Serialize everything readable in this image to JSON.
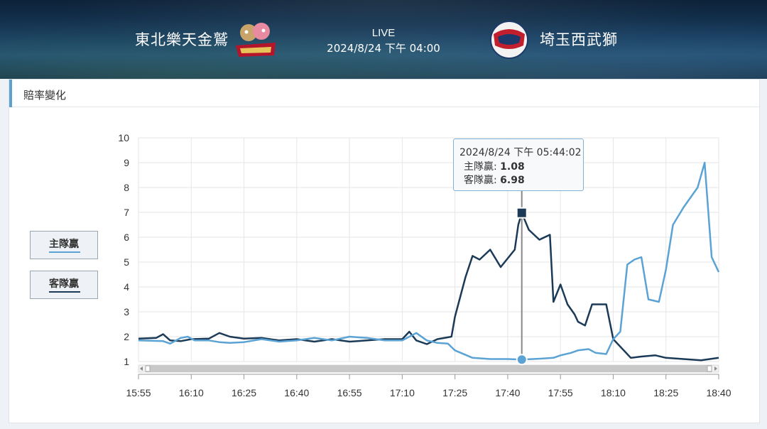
{
  "header": {
    "home_team": "東北樂天金鷲",
    "away_team": "埼玉西武獅",
    "status": "LIVE",
    "datetime": "2024/8/24 下午 04:00"
  },
  "section": {
    "title": "賠率變化"
  },
  "legend": {
    "home": "主隊贏",
    "away": "客隊贏"
  },
  "tooltip": {
    "time": "2024/8/24 下午 05:44:02",
    "home_label": "主隊贏:",
    "home_value": "1.08",
    "away_label": "客隊贏:",
    "away_value": "6.98"
  },
  "colors": {
    "home": "#5ba3d4",
    "away": "#1b3a57",
    "grid": "#e6e6e6",
    "header_bg": "#163a5c"
  },
  "chart_data": {
    "type": "line",
    "x_ticks": [
      "15:55",
      "16:10",
      "16:25",
      "16:40",
      "16:55",
      "17:10",
      "17:25",
      "17:40",
      "17:55",
      "18:10",
      "18:25",
      "18:40"
    ],
    "ylim": [
      1,
      10
    ],
    "y_ticks": [
      1,
      2,
      3,
      4,
      5,
      6,
      7,
      8,
      9,
      10
    ],
    "grid": true,
    "series": [
      {
        "name": "主隊贏",
        "color": "#5ba3d4",
        "points": [
          [
            "15:55",
            1.85
          ],
          [
            "16:02",
            1.82
          ],
          [
            "16:04",
            1.72
          ],
          [
            "16:07",
            1.95
          ],
          [
            "16:09",
            2.0
          ],
          [
            "16:11",
            1.85
          ],
          [
            "16:15",
            1.85
          ],
          [
            "16:18",
            1.78
          ],
          [
            "16:21",
            1.75
          ],
          [
            "16:25",
            1.78
          ],
          [
            "16:30",
            1.9
          ],
          [
            "16:35",
            1.8
          ],
          [
            "16:40",
            1.85
          ],
          [
            "16:45",
            1.95
          ],
          [
            "16:50",
            1.85
          ],
          [
            "16:55",
            2.0
          ],
          [
            "17:00",
            1.95
          ],
          [
            "17:05",
            1.85
          ],
          [
            "17:10",
            1.85
          ],
          [
            "17:14",
            2.15
          ],
          [
            "17:17",
            1.85
          ],
          [
            "17:20",
            1.75
          ],
          [
            "17:23",
            1.72
          ],
          [
            "17:25",
            1.45
          ],
          [
            "17:30",
            1.15
          ],
          [
            "17:35",
            1.1
          ],
          [
            "17:40",
            1.1
          ],
          [
            "17:44",
            1.08
          ],
          [
            "17:50",
            1.12
          ],
          [
            "17:53",
            1.15
          ],
          [
            "17:55",
            1.25
          ],
          [
            "17:58",
            1.35
          ],
          [
            "18:00",
            1.45
          ],
          [
            "18:03",
            1.5
          ],
          [
            "18:05",
            1.35
          ],
          [
            "18:08",
            1.3
          ],
          [
            "18:10",
            1.9
          ],
          [
            "18:12",
            2.2
          ],
          [
            "18:14",
            4.9
          ],
          [
            "18:16",
            5.1
          ],
          [
            "18:18",
            5.2
          ],
          [
            "18:20",
            3.5
          ],
          [
            "18:23",
            3.4
          ],
          [
            "18:25",
            4.7
          ],
          [
            "18:27",
            6.5
          ],
          [
            "18:30",
            7.2
          ],
          [
            "18:34",
            8.0
          ],
          [
            "18:36",
            9.0
          ],
          [
            "18:38",
            5.2
          ],
          [
            "18:40",
            4.6
          ]
        ]
      },
      {
        "name": "客隊贏",
        "color": "#1b3a57",
        "points": [
          [
            "15:55",
            1.92
          ],
          [
            "16:00",
            1.95
          ],
          [
            "16:02",
            2.1
          ],
          [
            "16:04",
            1.85
          ],
          [
            "16:07",
            1.82
          ],
          [
            "16:10",
            1.9
          ],
          [
            "16:15",
            1.92
          ],
          [
            "16:18",
            2.15
          ],
          [
            "16:21",
            2.0
          ],
          [
            "16:25",
            1.92
          ],
          [
            "16:30",
            1.95
          ],
          [
            "16:35",
            1.85
          ],
          [
            "16:40",
            1.9
          ],
          [
            "16:45",
            1.8
          ],
          [
            "16:50",
            1.9
          ],
          [
            "16:55",
            1.8
          ],
          [
            "17:00",
            1.85
          ],
          [
            "17:05",
            1.9
          ],
          [
            "17:10",
            1.9
          ],
          [
            "17:12",
            2.2
          ],
          [
            "17:14",
            1.85
          ],
          [
            "17:17",
            1.7
          ],
          [
            "17:20",
            1.9
          ],
          [
            "17:24",
            2.0
          ],
          [
            "17:25",
            2.8
          ],
          [
            "17:28",
            4.4
          ],
          [
            "17:30",
            5.25
          ],
          [
            "17:32",
            5.1
          ],
          [
            "17:35",
            5.5
          ],
          [
            "17:38",
            4.8
          ],
          [
            "17:42",
            5.5
          ],
          [
            "17:43",
            6.5
          ],
          [
            "17:44",
            6.98
          ],
          [
            "17:46",
            6.3
          ],
          [
            "17:49",
            5.9
          ],
          [
            "17:52",
            6.1
          ],
          [
            "17:53",
            3.4
          ],
          [
            "17:55",
            4.1
          ],
          [
            "17:57",
            3.3
          ],
          [
            "17:59",
            2.9
          ],
          [
            "18:00",
            2.6
          ],
          [
            "18:02",
            2.45
          ],
          [
            "18:04",
            3.3
          ],
          [
            "18:06",
            3.3
          ],
          [
            "18:08",
            3.3
          ],
          [
            "18:10",
            1.9
          ],
          [
            "18:15",
            1.15
          ],
          [
            "18:18",
            1.2
          ],
          [
            "18:22",
            1.25
          ],
          [
            "18:25",
            1.15
          ],
          [
            "18:30",
            1.1
          ],
          [
            "18:35",
            1.05
          ],
          [
            "18:40",
            1.15
          ]
        ]
      }
    ],
    "highlight": {
      "time": "17:44",
      "home": 1.08,
      "away": 6.98
    }
  }
}
